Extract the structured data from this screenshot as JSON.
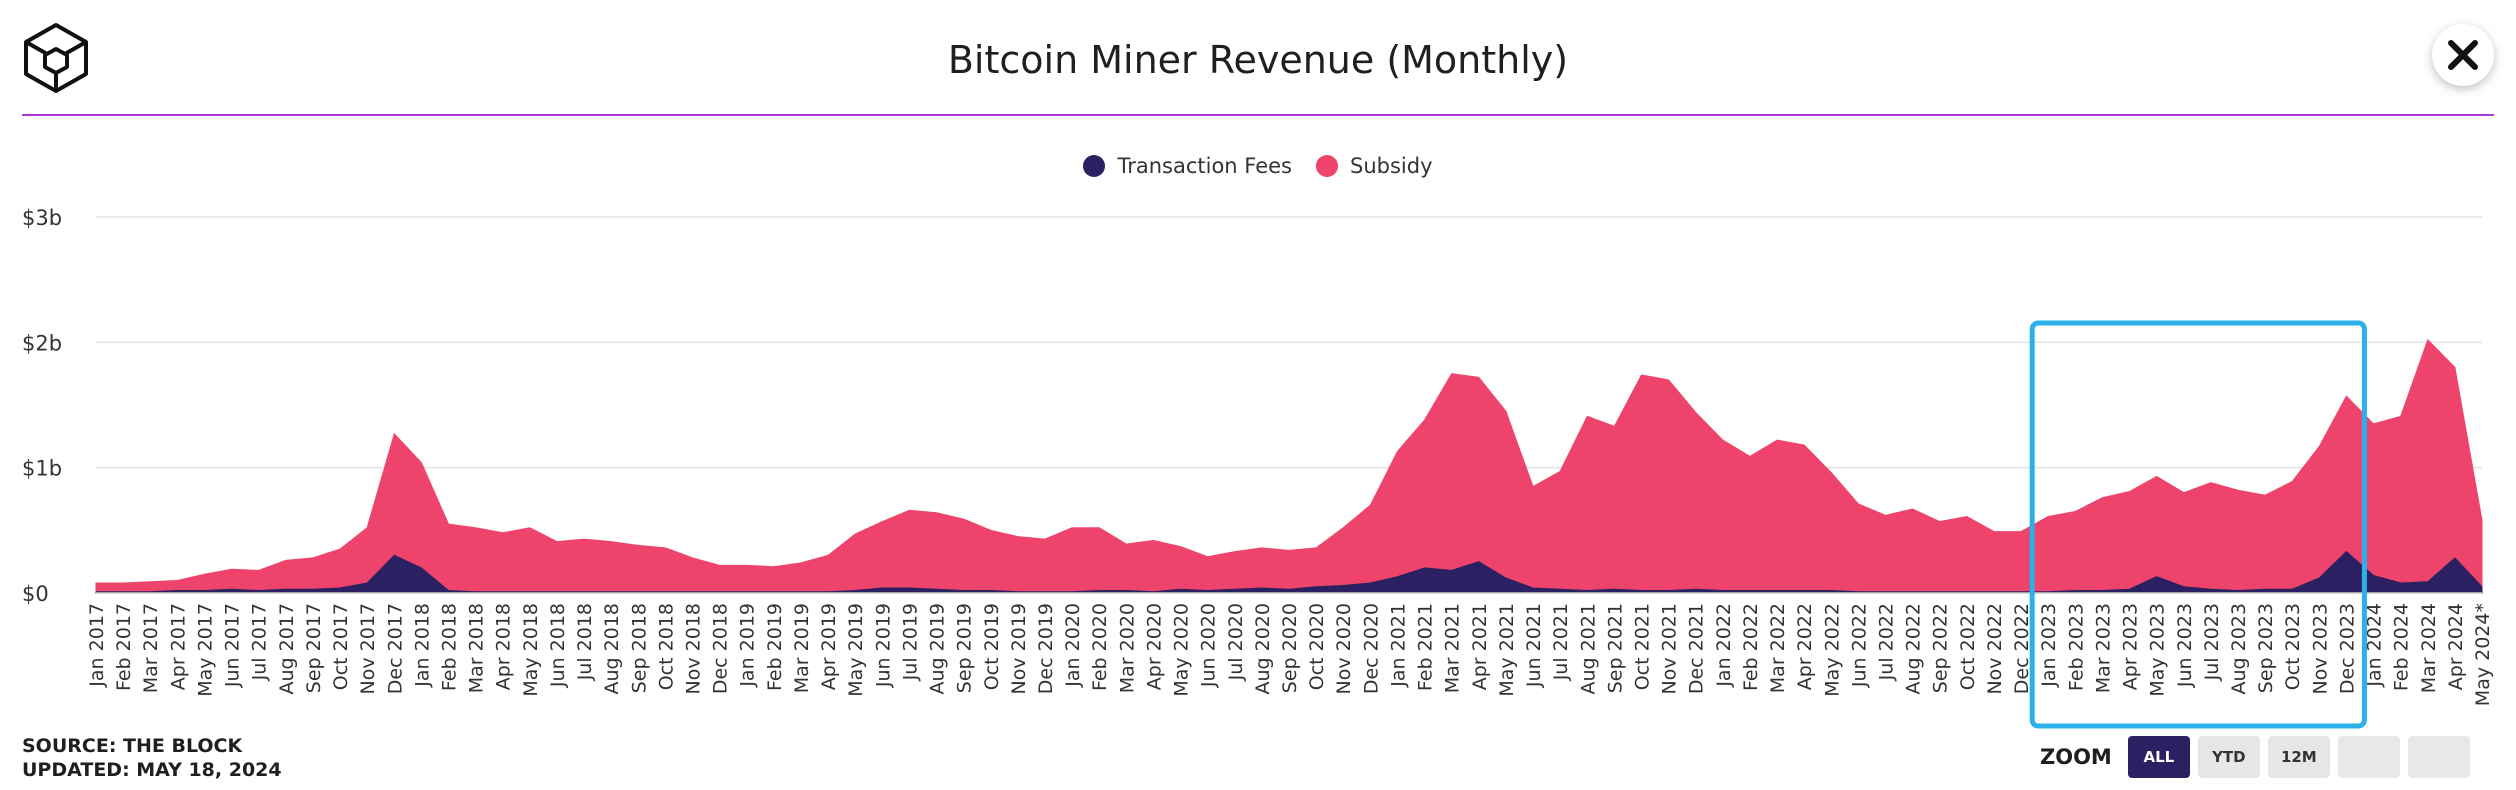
{
  "header": {
    "title": "Bitcoin Miner Revenue (Monthly)"
  },
  "colors": {
    "fees": "#2b2162",
    "subsidy": "#ee446b",
    "highlight": "#2bb0ea",
    "rule": "#a93ad6"
  },
  "footer": {
    "source": "SOURCE: THE BLOCK",
    "updated": "UPDATED: MAY 18, 2024"
  },
  "zoom": {
    "label": "ZOOM",
    "buttons": [
      "ALL",
      "YTD",
      "12M",
      "",
      ""
    ],
    "active": "ALL"
  },
  "chart_data": {
    "type": "area",
    "stacked": true,
    "legend_position": "top-center",
    "grid": true,
    "ylim": [
      0,
      3
    ],
    "yticks": [
      {
        "value": 0,
        "label": "$0"
      },
      {
        "value": 1,
        "label": "$1b"
      },
      {
        "value": 2,
        "label": "$2b"
      },
      {
        "value": 3,
        "label": "$3b"
      }
    ],
    "x": [
      "Jan 2017",
      "Feb 2017",
      "Mar 2017",
      "Apr 2017",
      "May 2017",
      "Jun 2017",
      "Jul 2017",
      "Aug 2017",
      "Sep 2017",
      "Oct 2017",
      "Nov 2017",
      "Dec 2017",
      "Jan 2018",
      "Feb 2018",
      "Mar 2018",
      "Apr 2018",
      "May 2018",
      "Jun 2018",
      "Jul 2018",
      "Aug 2018",
      "Sep 2018",
      "Oct 2018",
      "Nov 2018",
      "Dec 2018",
      "Jan 2019",
      "Feb 2019",
      "Mar 2019",
      "Apr 2019",
      "May 2019",
      "Jun 2019",
      "Jul 2019",
      "Aug 2019",
      "Sep 2019",
      "Oct 2019",
      "Nov 2019",
      "Dec 2019",
      "Jan 2020",
      "Feb 2020",
      "Mar 2020",
      "Apr 2020",
      "May 2020",
      "Jun 2020",
      "Jul 2020",
      "Aug 2020",
      "Sep 2020",
      "Oct 2020",
      "Nov 2020",
      "Dec 2020",
      "Jan 2021",
      "Feb 2021",
      "Mar 2021",
      "Apr 2021",
      "May 2021",
      "Jun 2021",
      "Jul 2021",
      "Aug 2021",
      "Sep 2021",
      "Oct 2021",
      "Nov 2021",
      "Dec 2021",
      "Jan 2022",
      "Feb 2022",
      "Mar 2022",
      "Apr 2022",
      "May 2022",
      "Jun 2022",
      "Jul 2022",
      "Aug 2022",
      "Sep 2022",
      "Oct 2022",
      "Nov 2022",
      "Dec 2022",
      "Jan 2023",
      "Feb 2023",
      "Mar 2023",
      "Apr 2023",
      "May 2023",
      "Jun 2023",
      "Jul 2023",
      "Aug 2023",
      "Sep 2023",
      "Oct 2023",
      "Nov 2023",
      "Dec 2023",
      "Jan 2024",
      "Feb 2024",
      "Mar 2024",
      "Apr 2024",
      "May 2024*"
    ],
    "series": [
      {
        "name": "Transaction Fees",
        "values": [
          0.01,
          0.01,
          0.01,
          0.02,
          0.02,
          0.03,
          0.02,
          0.03,
          0.03,
          0.04,
          0.08,
          0.3,
          0.2,
          0.02,
          0.01,
          0.01,
          0.01,
          0.01,
          0.01,
          0.01,
          0.01,
          0.01,
          0.01,
          0.01,
          0.01,
          0.01,
          0.01,
          0.01,
          0.02,
          0.04,
          0.04,
          0.03,
          0.02,
          0.02,
          0.01,
          0.01,
          0.01,
          0.02,
          0.02,
          0.01,
          0.03,
          0.02,
          0.03,
          0.04,
          0.03,
          0.05,
          0.06,
          0.08,
          0.13,
          0.2,
          0.18,
          0.25,
          0.12,
          0.04,
          0.03,
          0.02,
          0.03,
          0.02,
          0.02,
          0.03,
          0.02,
          0.02,
          0.02,
          0.02,
          0.02,
          0.01,
          0.01,
          0.01,
          0.01,
          0.01,
          0.01,
          0.01,
          0.01,
          0.02,
          0.02,
          0.03,
          0.13,
          0.05,
          0.03,
          0.02,
          0.03,
          0.03,
          0.12,
          0.33,
          0.14,
          0.08,
          0.09,
          0.28,
          0.05
        ]
      },
      {
        "name": "Subsidy",
        "values": [
          0.07,
          0.07,
          0.08,
          0.08,
          0.13,
          0.16,
          0.16,
          0.23,
          0.25,
          0.31,
          0.44,
          0.97,
          0.84,
          0.53,
          0.51,
          0.47,
          0.51,
          0.4,
          0.42,
          0.4,
          0.37,
          0.35,
          0.27,
          0.21,
          0.21,
          0.2,
          0.23,
          0.29,
          0.45,
          0.53,
          0.62,
          0.61,
          0.57,
          0.48,
          0.44,
          0.42,
          0.51,
          0.5,
          0.37,
          0.41,
          0.34,
          0.27,
          0.3,
          0.32,
          0.31,
          0.31,
          0.46,
          0.62,
          1.0,
          1.18,
          1.57,
          1.47,
          1.33,
          0.81,
          0.94,
          1.39,
          1.3,
          1.72,
          1.68,
          1.41,
          1.2,
          1.07,
          1.2,
          1.16,
          0.94,
          0.7,
          0.61,
          0.66,
          0.56,
          0.6,
          0.48,
          0.48,
          0.6,
          0.63,
          0.74,
          0.78,
          0.8,
          0.75,
          0.85,
          0.8,
          0.75,
          0.86,
          1.05,
          1.24,
          1.21,
          1.33,
          1.93,
          1.52,
          0.53
        ]
      }
    ]
  }
}
